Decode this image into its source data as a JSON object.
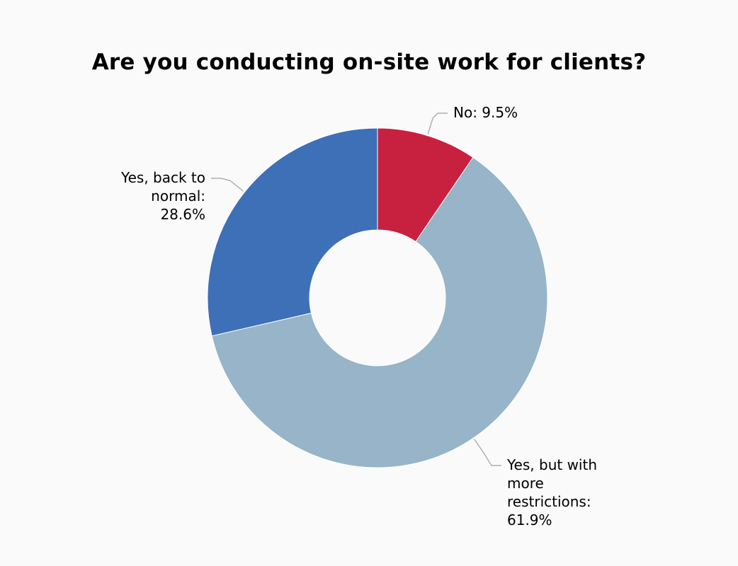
{
  "chart_data": {
    "type": "pie",
    "title": "Are you conducting on-site work for clients?",
    "categories": [
      "No",
      "Yes, but with more restrictions",
      "Yes, back to normal"
    ],
    "values": [
      9.5,
      61.9,
      28.6
    ],
    "labels": [
      [
        "No: 9.5%"
      ],
      [
        "Yes, but with",
        "more",
        "restrictions:",
        "61.9%"
      ],
      [
        "Yes, back to",
        "normal:",
        "28.6%"
      ]
    ],
    "colors": [
      "#c8213f",
      "#97b4c8",
      "#3d70b7"
    ],
    "donut": true,
    "legend": "none"
  }
}
